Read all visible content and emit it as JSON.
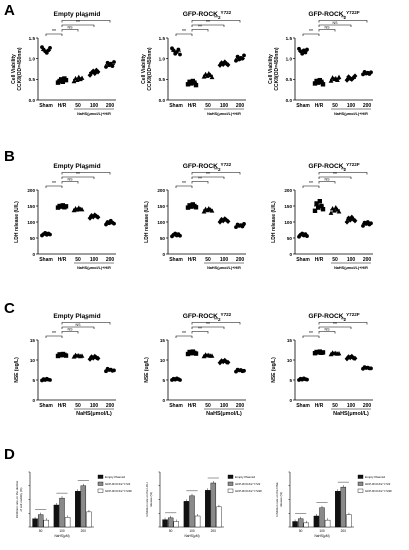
{
  "panel_labels": [
    "A",
    "B",
    "C",
    "D"
  ],
  "chart_data": [
    {
      "id": "A1",
      "type": "scatter",
      "panel": "A",
      "title": "Empty plasmid",
      "title_sup": "",
      "ylabel": "Cell Viability\nCCK8(OD=450nm)",
      "xlabel": "NaHS(μmol/L)+H/R",
      "categories": [
        "Sham",
        "H/R",
        "50",
        "100",
        "200"
      ],
      "ylim": [
        0.0,
        1.5
      ],
      "yticks": [
        "0.0",
        "0.5",
        "1.0",
        "1.5"
      ],
      "means": [
        1.2,
        0.47,
        0.5,
        0.67,
        0.86
      ],
      "points": [
        [
          1.28,
          1.22,
          1.18,
          1.14,
          1.2,
          1.26
        ],
        [
          0.42,
          0.46,
          0.5,
          0.44,
          0.52,
          0.48
        ],
        [
          0.45,
          0.52,
          0.48,
          0.55,
          0.5,
          0.53
        ],
        [
          0.6,
          0.66,
          0.7,
          0.64,
          0.72,
          0.68
        ],
        [
          0.8,
          0.9,
          0.84,
          0.88,
          0.82,
          0.92
        ]
      ],
      "brackets": [
        {
          "from": 0,
          "to": 1,
          "label": "**"
        },
        {
          "from": 1,
          "to": 2,
          "label": "NS"
        },
        {
          "from": 1,
          "to": 3,
          "label": "**"
        },
        {
          "from": 1,
          "to": 4,
          "label": "**"
        }
      ]
    },
    {
      "id": "A2",
      "type": "scatter",
      "panel": "A",
      "title": "GFP-ROCK",
      "title_sup": "Y722",
      "ylabel": "Cell Viability\nCCK8(OD=450nm)",
      "xlabel": "NaHS(μmol/L)+H/R",
      "categories": [
        "Sham",
        "H/R",
        "50",
        "100",
        "200"
      ],
      "ylim": [
        0.0,
        1.5
      ],
      "yticks": [
        "0.0",
        "0.5",
        "1.0",
        "1.5"
      ],
      "means": [
        1.18,
        0.42,
        0.6,
        0.88,
        1.0
      ],
      "points": [
        [
          1.25,
          1.2,
          1.12,
          1.16,
          1.22,
          1.1
        ],
        [
          0.38,
          0.44,
          0.4,
          0.46,
          0.42,
          0.36
        ],
        [
          0.56,
          0.62,
          0.58,
          0.64,
          0.6,
          0.55
        ],
        [
          0.84,
          0.9,
          0.86,
          0.92,
          0.88,
          0.85
        ],
        [
          0.95,
          1.05,
          0.98,
          1.02,
          1.0,
          1.08
        ]
      ],
      "brackets": [
        {
          "from": 0,
          "to": 1,
          "label": "**"
        },
        {
          "from": 1,
          "to": 2,
          "label": "**"
        },
        {
          "from": 1,
          "to": 3,
          "label": "**"
        },
        {
          "from": 1,
          "to": 4,
          "label": "**"
        }
      ]
    },
    {
      "id": "A3",
      "type": "scatter",
      "panel": "A",
      "title": "GFP-ROCK",
      "title_sup": "Y722F",
      "ylabel": "Cell Viability\nCCK8(OD=450nm)",
      "xlabel": "NaHS(μmol/L)+H/R",
      "categories": [
        "Sham",
        "H/R",
        "50",
        "100",
        "200"
      ],
      "ylim": [
        0.0,
        1.5
      ],
      "yticks": [
        "0.0",
        "0.5",
        "1.0",
        "1.5"
      ],
      "means": [
        1.18,
        0.44,
        0.5,
        0.52,
        0.65
      ],
      "points": [
        [
          1.24,
          1.18,
          1.12,
          1.2,
          1.15,
          1.22
        ],
        [
          0.4,
          0.46,
          0.42,
          0.48,
          0.44,
          0.38
        ],
        [
          0.46,
          0.54,
          0.5,
          0.52,
          0.48,
          0.55
        ],
        [
          0.48,
          0.56,
          0.52,
          0.5,
          0.54,
          0.58
        ],
        [
          0.62,
          0.68,
          0.64,
          0.66,
          0.63,
          0.67
        ]
      ],
      "brackets": [
        {
          "from": 0,
          "to": 1,
          "label": "**"
        },
        {
          "from": 1,
          "to": 2,
          "label": "NS"
        },
        {
          "from": 1,
          "to": 3,
          "label": "NS"
        },
        {
          "from": 1,
          "to": 4,
          "label": "**"
        }
      ]
    },
    {
      "id": "B1",
      "type": "scatter",
      "panel": "B",
      "title": "Empty Plasmid",
      "title_sup": "",
      "ylabel": "LDH release (U/L)",
      "xlabel": "NaHS(μmol/L)+H/R",
      "categories": [
        "Sham",
        "H/R",
        "50",
        "100",
        "200"
      ],
      "ylim": [
        0,
        200
      ],
      "yticks": [
        "0",
        "50",
        "100",
        "150",
        "200"
      ],
      "means": [
        62,
        148,
        140,
        118,
        98
      ],
      "points": [
        [
          58,
          62,
          66,
          60,
          64,
          61
        ],
        [
          145,
          150,
          148,
          152,
          146,
          149
        ],
        [
          136,
          142,
          138,
          144,
          140,
          139
        ],
        [
          112,
          120,
          116,
          122,
          118,
          115
        ],
        [
          92,
          100,
          96,
          104,
          98,
          95
        ]
      ],
      "brackets": [
        {
          "from": 0,
          "to": 1,
          "label": "**"
        },
        {
          "from": 1,
          "to": 2,
          "label": "NS"
        },
        {
          "from": 1,
          "to": 3,
          "label": "**"
        },
        {
          "from": 1,
          "to": 4,
          "label": "**"
        }
      ]
    },
    {
      "id": "B2",
      "type": "scatter",
      "panel": "B",
      "title": "GFP-ROCK",
      "title_sup": "Y722",
      "ylabel": "LDH release (U/L)",
      "xlabel": "NaHS(μmol/L)+H/R",
      "categories": [
        "Sham",
        "H/R",
        "50",
        "100",
        "200"
      ],
      "ylim": [
        0,
        200
      ],
      "yticks": [
        "0",
        "50",
        "100",
        "150",
        "200"
      ],
      "means": [
        60,
        150,
        138,
        105,
        88
      ],
      "points": [
        [
          55,
          60,
          64,
          58,
          62,
          57
        ],
        [
          145,
          152,
          148,
          155,
          150,
          146
        ],
        [
          132,
          140,
          136,
          142,
          138,
          135
        ],
        [
          100,
          108,
          104,
          110,
          106,
          102
        ],
        [
          84,
          92,
          88,
          90,
          86,
          94
        ]
      ],
      "brackets": [
        {
          "from": 0,
          "to": 1,
          "label": "**"
        },
        {
          "from": 1,
          "to": 2,
          "label": "**"
        },
        {
          "from": 1,
          "to": 3,
          "label": "**"
        },
        {
          "from": 1,
          "to": 4,
          "label": "**"
        }
      ]
    },
    {
      "id": "B3",
      "type": "scatter",
      "panel": "B",
      "title": "GFP-ROCK",
      "title_sup": "Y722F",
      "ylabel": "LDH release (U/L)",
      "xlabel": "NaHS(μmol/L)+H/R",
      "categories": [
        "Sham",
        "H/R",
        "50",
        "100",
        "200"
      ],
      "ylim": [
        0,
        200
      ],
      "yticks": [
        "0",
        "50",
        "100",
        "150",
        "200"
      ],
      "means": [
        60,
        150,
        138,
        108,
        95
      ],
      "points": [
        [
          54,
          60,
          64,
          58,
          62,
          56
        ],
        [
          135,
          158,
          145,
          165,
          150,
          140
        ],
        [
          128,
          142,
          135,
          145,
          138,
          132
        ],
        [
          100,
          112,
          106,
          115,
          108,
          104
        ],
        [
          88,
          98,
          94,
          100,
          92,
          96
        ]
      ],
      "brackets": [
        {
          "from": 0,
          "to": 1,
          "label": "**"
        },
        {
          "from": 1,
          "to": 2,
          "label": "NS"
        },
        {
          "from": 1,
          "to": 3,
          "label": "**"
        },
        {
          "from": 1,
          "to": 4,
          "label": "**"
        }
      ]
    },
    {
      "id": "C1",
      "type": "scatter",
      "panel": "C",
      "title": "Empty Plasmid",
      "title_sup": "",
      "ylabel": "NSE (ug/L)",
      "xlabel": "NaHS(μmol/L)",
      "categories": [
        "Sham",
        "H/R",
        "50",
        "100",
        "200"
      ],
      "ylim": [
        0,
        15
      ],
      "yticks": [
        "0",
        "5",
        "10",
        "15"
      ],
      "means": [
        5.1,
        11.3,
        11.0,
        10.6,
        7.5
      ],
      "points": [
        [
          4.9,
          5.2,
          5.0,
          5.3,
          5.1,
          5.0
        ],
        [
          11.0,
          11.4,
          11.2,
          11.5,
          11.3,
          11.1
        ],
        [
          10.8,
          11.2,
          11.0,
          11.1,
          10.9,
          11.0
        ],
        [
          10.2,
          10.8,
          10.5,
          10.9,
          10.6,
          10.4
        ],
        [
          7.2,
          7.8,
          7.5,
          7.6,
          7.3,
          7.4
        ]
      ],
      "brackets": [
        {
          "from": 0,
          "to": 1,
          "label": "**"
        },
        {
          "from": 1,
          "to": 2,
          "label": "NS"
        },
        {
          "from": 1,
          "to": 3,
          "label": "NS"
        },
        {
          "from": 1,
          "to": 4,
          "label": "**"
        }
      ]
    },
    {
      "id": "C2",
      "type": "scatter",
      "panel": "C",
      "title": "GFP-ROCK",
      "title_sup": "Y722",
      "ylabel": "NSE (ug/L)",
      "xlabel": "NaHS(μmol/L)",
      "categories": [
        "Sham",
        "H/R",
        "50",
        "100",
        "200"
      ],
      "ylim": [
        0,
        15
      ],
      "yticks": [
        "0",
        "5",
        "10",
        "15"
      ],
      "means": [
        5.2,
        11.8,
        11.1,
        9.6,
        7.4
      ],
      "points": [
        [
          5.0,
          5.3,
          5.1,
          5.4,
          5.2,
          5.0
        ],
        [
          11.5,
          12.0,
          11.7,
          12.1,
          11.8,
          11.6
        ],
        [
          10.9,
          11.3,
          11.1,
          11.2,
          11.0,
          11.0
        ],
        [
          9.3,
          9.8,
          9.6,
          9.9,
          9.5,
          9.4
        ],
        [
          7.1,
          7.6,
          7.4,
          7.5,
          7.2,
          7.3
        ]
      ],
      "brackets": [
        {
          "from": 0,
          "to": 1,
          "label": "**"
        },
        {
          "from": 1,
          "to": 2,
          "label": "**"
        },
        {
          "from": 1,
          "to": 3,
          "label": "**"
        },
        {
          "from": 1,
          "to": 4,
          "label": "**"
        }
      ]
    },
    {
      "id": "C3",
      "type": "scatter",
      "panel": "C",
      "title": "GFP-ROCK",
      "title_sup": "Y722F",
      "ylabel": "NSE (ug/L)",
      "xlabel": "NaHS(μmol/L)",
      "categories": [
        "Sham",
        "H/R",
        "50",
        "100",
        "200"
      ],
      "ylim": [
        0,
        15
      ],
      "yticks": [
        "0",
        "5",
        "10",
        "15"
      ],
      "means": [
        5.2,
        11.9,
        11.6,
        10.6,
        8.0
      ],
      "points": [
        [
          5.0,
          5.3,
          5.1,
          5.4,
          5.2,
          5.1
        ],
        [
          11.7,
          12.0,
          11.9,
          12.1,
          11.8,
          11.9
        ],
        [
          11.4,
          11.8,
          11.6,
          11.7,
          11.5,
          11.6
        ],
        [
          10.3,
          10.8,
          10.6,
          10.9,
          10.5,
          10.4
        ],
        [
          7.8,
          8.2,
          8.0,
          8.1,
          7.9,
          7.9
        ]
      ],
      "brackets": [
        {
          "from": 0,
          "to": 1,
          "label": "**"
        },
        {
          "from": 1,
          "to": 2,
          "label": "NS"
        },
        {
          "from": 1,
          "to": 3,
          "label": "**"
        },
        {
          "from": 1,
          "to": 4,
          "label": "**"
        }
      ]
    },
    {
      "id": "D1",
      "type": "bar",
      "panel": "D",
      "ylabel": "Inhibition rate on the decline\nof cell viability (%)",
      "xlabel": "NaHS(μM)",
      "categories": [
        "50",
        "100",
        "200"
      ],
      "ylim": [
        0,
        80
      ],
      "legend": [
        "Empty Plasmid",
        "GFP-ROCK2 Y722",
        "GFP-ROCK2 Y722F"
      ],
      "series": [
        {
          "values": [
            12,
            32,
            52
          ]
        },
        {
          "values": [
            18,
            42,
            60
          ]
        },
        {
          "values": [
            10,
            14,
            22
          ]
        }
      ]
    },
    {
      "id": "D2",
      "type": "bar",
      "panel": "D",
      "ylabel": "Inhibition rate on the LDH\nrelease (%)",
      "xlabel": "NaHS(μM)",
      "categories": [
        "50",
        "100",
        "200"
      ],
      "ylim": [
        0,
        60
      ],
      "legend": [
        "Empty Plasmid",
        "GFP-ROCK2 Y722",
        "GFP-ROCK2 Y722F"
      ],
      "series": [
        {
          "values": [
            8,
            28,
            40
          ]
        },
        {
          "values": [
            10,
            34,
            48
          ]
        },
        {
          "values": [
            6,
            12,
            22
          ]
        }
      ]
    },
    {
      "id": "D3",
      "type": "bar",
      "panel": "D",
      "ylabel": "Inhibition rate on the NSE\nrelease (%)",
      "xlabel": "NaHS(μM)",
      "categories": [
        "50",
        "100",
        "200"
      ],
      "ylim": [
        0,
        80
      ],
      "legend": [
        "Empty Plasmid",
        "GFP-ROCK2 Y722",
        "GFP-ROCK2 Y722F"
      ],
      "series": [
        {
          "values": [
            8,
            16,
            52
          ]
        },
        {
          "values": [
            12,
            28,
            58
          ]
        },
        {
          "values": [
            6,
            10,
            18
          ]
        }
      ]
    }
  ]
}
